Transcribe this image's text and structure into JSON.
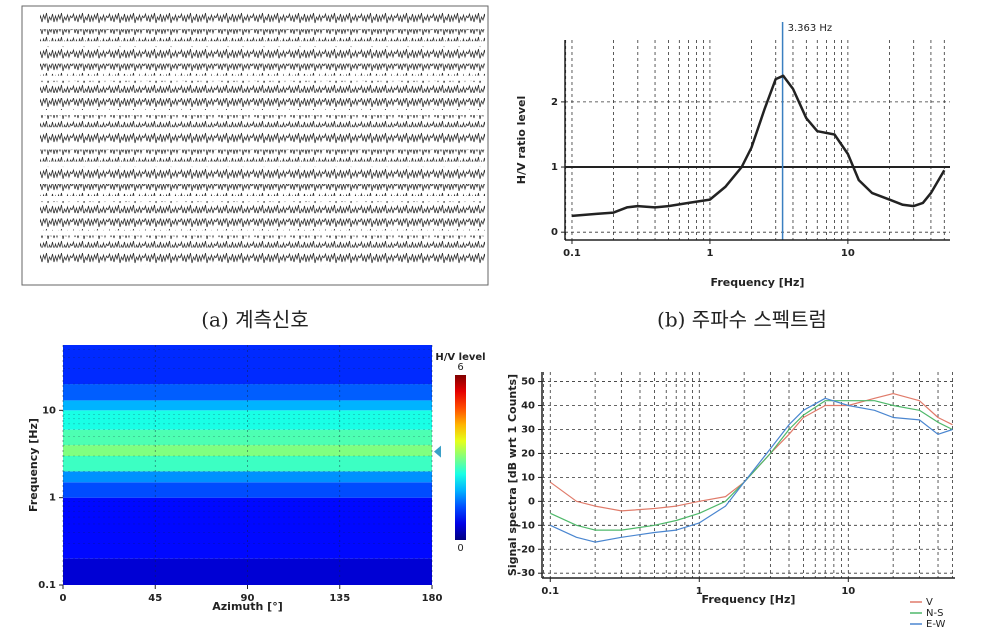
{
  "chart_data": [
    {
      "type": "waveform",
      "caption": "(a) 계측신호"
    },
    {
      "type": "line",
      "caption": "(b) 주파수 스펙트럼",
      "xlabel": "Frequency [Hz]",
      "ylabel": "H/V ratio level",
      "x": [
        0.1,
        0.15,
        0.2,
        0.25,
        0.3,
        0.4,
        0.5,
        0.7,
        1,
        1.3,
        1.7,
        2,
        2.5,
        3,
        3.4,
        4,
        5,
        6,
        8,
        10,
        12,
        15,
        20,
        25,
        30,
        35,
        40,
        50
      ],
      "values": [
        0.25,
        0.28,
        0.3,
        0.38,
        0.4,
        0.38,
        0.4,
        0.45,
        0.5,
        0.7,
        1.0,
        1.3,
        1.9,
        2.35,
        2.4,
        2.2,
        1.75,
        1.55,
        1.5,
        1.2,
        0.8,
        0.6,
        0.5,
        0.42,
        0.4,
        0.45,
        0.6,
        0.95
      ],
      "color": "#222222",
      "xlim": [
        0.089,
        55
      ],
      "ylim": [
        -0.12,
        2.95
      ],
      "xticks": [
        0.1,
        1,
        10
      ],
      "yticks": [
        0,
        1,
        2
      ],
      "log_x": true,
      "grid": true,
      "reference_line": 1,
      "peak": {
        "value": 3.363,
        "label": "3.363 Hz"
      },
      "peak_color": "#3a7fc1"
    },
    {
      "type": "heatmap",
      "xlabel": "Azimuth [°]",
      "ylabel": "Frequency [Hz]",
      "xlim": [
        0,
        180
      ],
      "xticks": [
        0,
        45,
        90,
        135,
        180
      ],
      "ylim": [
        0.1,
        56
      ],
      "yticks": [
        0.1,
        1,
        10
      ],
      "log_y": true,
      "ybins": [
        0.1,
        0.2,
        1,
        1.5,
        2,
        3,
        4,
        6,
        10,
        13,
        20,
        56
      ],
      "values": [
        0.5,
        0.8,
        1.2,
        1.6,
        2.6,
        3.0,
        2.7,
        2.4,
        1.8,
        1.3,
        1.0
      ],
      "colorbar_label": "H/V level",
      "clim": [
        0,
        6
      ],
      "colorbar_ticks": [
        0,
        6
      ],
      "colormap": "jet",
      "marker": 3.363,
      "marker_color": "#3aa0c8"
    },
    {
      "type": "line",
      "xlabel": "Frequency [Hz]",
      "ylabel": "Signal spectra [dB wrt 1 Counts]",
      "x": [
        0.1,
        0.15,
        0.2,
        0.3,
        0.5,
        0.7,
        1,
        1.5,
        2,
        3,
        4,
        5,
        7,
        10,
        15,
        20,
        30,
        40,
        50
      ],
      "series": [
        {
          "name": "V",
          "color": "#e07b6a",
          "values": [
            8,
            0,
            -2,
            -4,
            -3,
            -2,
            0,
            2,
            8,
            20,
            28,
            35,
            40,
            40,
            43,
            45,
            42,
            35,
            32
          ]
        },
        {
          "name": "N-S",
          "color": "#4fb86a",
          "values": [
            -5,
            -10,
            -12,
            -12,
            -10,
            -8,
            -5,
            0,
            8,
            20,
            30,
            36,
            42,
            42,
            42,
            40,
            38,
            33,
            30
          ]
        },
        {
          "name": "E-W",
          "color": "#4a86d0",
          "values": [
            -10,
            -15,
            -17,
            -15,
            -13,
            -12,
            -9,
            -2,
            8,
            22,
            32,
            38,
            43,
            40,
            38,
            35,
            34,
            28,
            30
          ]
        }
      ],
      "xlim": [
        0.088,
        52
      ],
      "ylim": [
        -32,
        54
      ],
      "xticks": [
        0.1,
        1,
        10
      ],
      "yticks": [
        -30,
        -20,
        -10,
        0,
        10,
        20,
        30,
        40,
        50
      ],
      "log_x": true,
      "grid": true,
      "legend": "lower right"
    }
  ]
}
